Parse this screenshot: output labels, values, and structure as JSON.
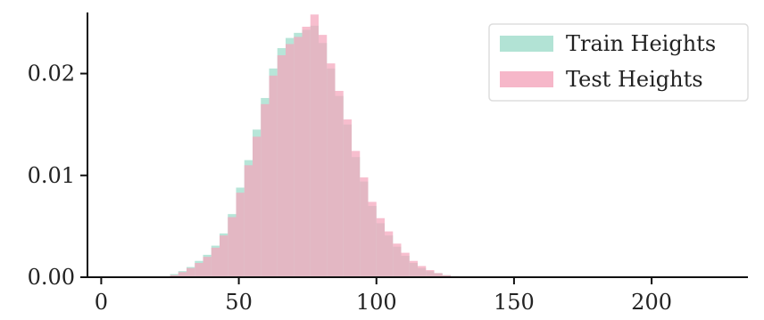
{
  "chart_data": {
    "type": "histogram",
    "title": "",
    "xlabel": "",
    "ylabel": "",
    "xlim": [
      -5,
      235
    ],
    "ylim": [
      0,
      0.026
    ],
    "xticks": [
      0,
      50,
      100,
      150,
      200
    ],
    "yticks": [
      0.0,
      0.01,
      0.02
    ],
    "ytick_labels": [
      "0.00",
      "0.01",
      "0.02"
    ],
    "grid": false,
    "legend_position": "top-right",
    "bin_edges": [
      25,
      28,
      31,
      34,
      37,
      40,
      43,
      46,
      49,
      52,
      55,
      58,
      61,
      64,
      67,
      70,
      73,
      76,
      79,
      82,
      85,
      88,
      91,
      94,
      97,
      100,
      103,
      106,
      109,
      112,
      115,
      118,
      121,
      124,
      127,
      130
    ],
    "series": [
      {
        "name": "Train Heights",
        "color": "#9fdccb",
        "values": [
          0.0003,
          0.0006,
          0.001,
          0.0016,
          0.0022,
          0.0031,
          0.0043,
          0.0062,
          0.0088,
          0.0115,
          0.0145,
          0.0176,
          0.0205,
          0.0225,
          0.0235,
          0.024,
          0.0243,
          0.0247,
          0.023,
          0.0205,
          0.0178,
          0.015,
          0.0118,
          0.0094,
          0.007,
          0.0053,
          0.0041,
          0.003,
          0.0021,
          0.0014,
          0.0009,
          0.0006,
          0.0004,
          0.0002,
          0.0001
        ]
      },
      {
        "name": "Test Heights",
        "color": "#f4a5bb",
        "values": [
          0.0002,
          0.0005,
          0.0009,
          0.0014,
          0.002,
          0.0029,
          0.0041,
          0.0059,
          0.0083,
          0.011,
          0.0138,
          0.017,
          0.0198,
          0.0218,
          0.0229,
          0.0236,
          0.0246,
          0.0258,
          0.0238,
          0.021,
          0.0183,
          0.0155,
          0.0124,
          0.0098,
          0.0074,
          0.0058,
          0.0045,
          0.0033,
          0.0024,
          0.0016,
          0.0011,
          0.0007,
          0.0004,
          0.0002,
          0.0001
        ]
      }
    ]
  }
}
